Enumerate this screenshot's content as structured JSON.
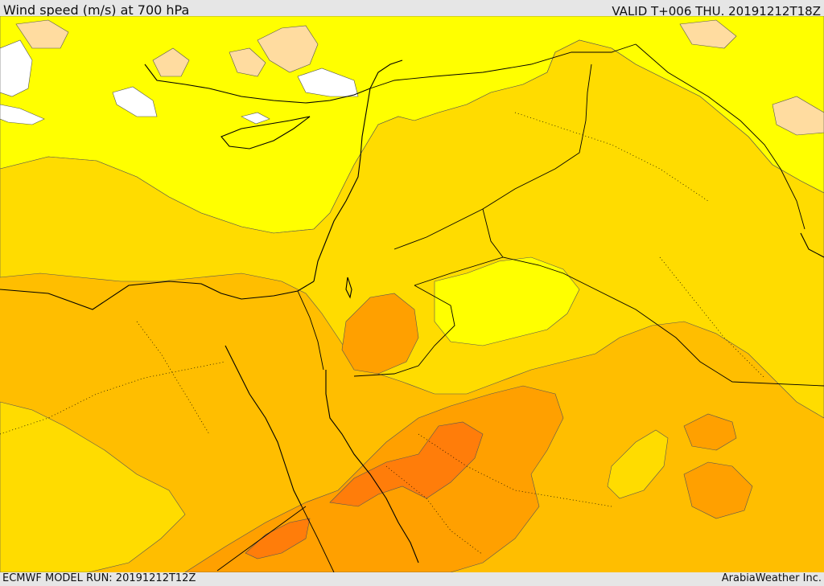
{
  "header": {
    "title": "Wind speed (m/s) at 700 hPa",
    "valid": "VALID T+006 THU. 20191212T18Z"
  },
  "footer": {
    "model_run": "ECMWF MODEL RUN: 20191212T12Z",
    "credit": "ArabiaWeather Inc."
  },
  "colors": {
    "band_0": "#ffffff",
    "band_1": "#ffdca0",
    "band_2": "#ffff00",
    "band_3": "#ffdc00",
    "band_4": "#ffbe00",
    "band_5": "#ffa000",
    "band_6": "#ff7d0a",
    "coastline": "#000000",
    "border": "#000000"
  }
}
